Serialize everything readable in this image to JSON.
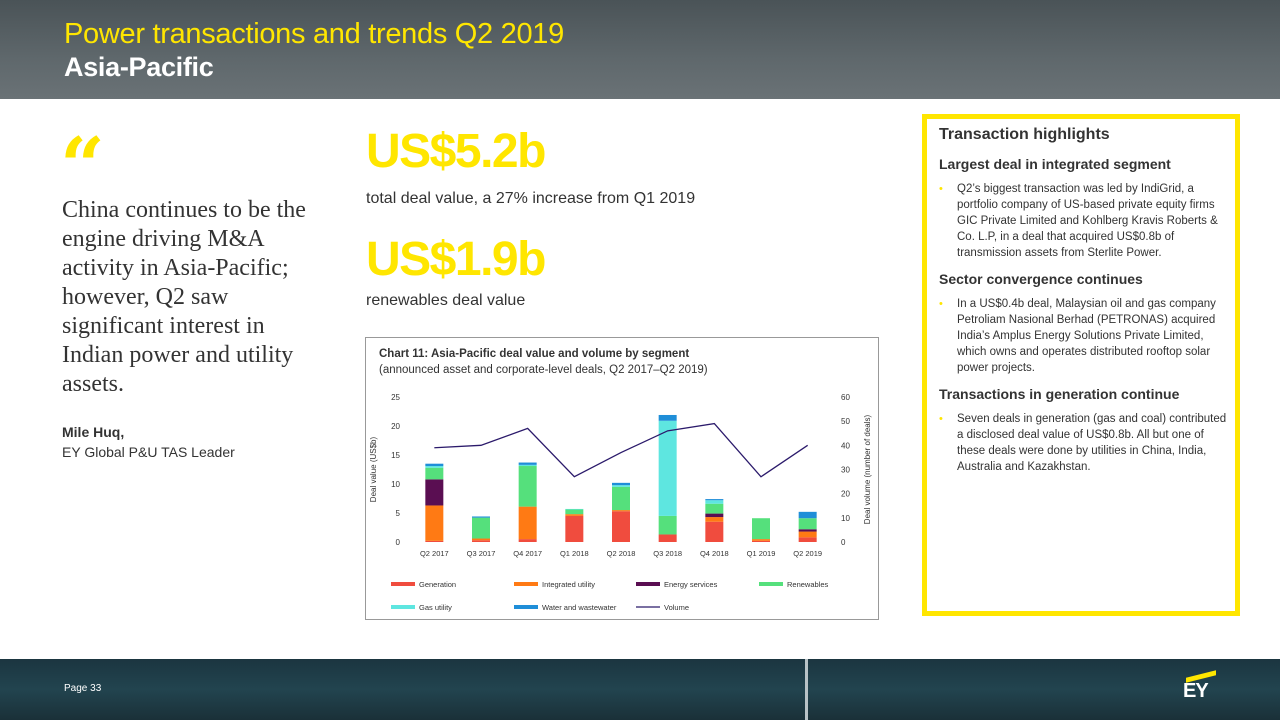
{
  "header": {
    "title": "Power transactions and trends Q2 2019",
    "subtitle": "Asia-Pacific"
  },
  "quote": {
    "mark": "“",
    "text": "China continues to be the engine driving M&A activity in Asia-Pacific; however, Q2 saw significant interest in Indian power and utility assets.",
    "author": "Mile Huq,",
    "role": "EY Global P&U TAS Leader"
  },
  "stats": [
    {
      "value": "US$5.2b",
      "desc": "total deal value, a 27% increase from Q1 2019"
    },
    {
      "value": "US$1.9b",
      "desc": "renewables deal value"
    }
  ],
  "highlights": {
    "title": "Transaction highlights",
    "sections": [
      {
        "heading": "Largest deal in integrated segment",
        "bullet": "Q2’s biggest transaction was led by IndiGrid, a portfolio company of US-based private equity firms GIC Private Limited and Kohlberg Kravis Roberts & Co. L.P, in a deal that acquired US$0.8b of transmission assets from Sterlite Power."
      },
      {
        "heading": "Sector convergence continues",
        "bullet": "In a US$0.4b deal, Malaysian oil and gas company Petroliam Nasional Berhad (PETRONAS) acquired India’s Amplus Energy Solutions Private Limited, which owns and operates distributed rooftop solar power projects."
      },
      {
        "heading": "Transactions in generation continue",
        "bullet": "Seven deals in generation (gas and coal) contributed a disclosed deal value of US$0.8b. All but one of these deals were done by utilities in China, India, Australia and Kazakhstan."
      }
    ]
  },
  "footer": {
    "page": "Page 33",
    "logo": "EY"
  },
  "chart_data": {
    "type": "bar",
    "stacked": true,
    "title": "Chart 11: Asia-Pacific deal value and volume by segment",
    "subtitle": "(announced asset and corporate-level deals, Q2 2017–Q2 2019)",
    "ylabel": "Deal value (US$b)",
    "y2label": "Deal volume (number of deals)",
    "ylim": [
      0,
      25
    ],
    "y2lim": [
      0,
      60
    ],
    "yticks": [
      "0",
      "5",
      "10",
      "15",
      "20",
      "25"
    ],
    "y2ticks": [
      "0",
      "10",
      "20",
      "30",
      "40",
      "50",
      "60"
    ],
    "categories": [
      "Q2 2017",
      "Q3 2017",
      "Q4 2017",
      "Q1 2018",
      "Q2 2018",
      "Q3 2018",
      "Q4 2018",
      "Q1 2019",
      "Q2 2019"
    ],
    "series": [
      {
        "name": "Generation",
        "color": "#f04c3e",
        "values": [
          0.2,
          0.3,
          0.5,
          4.5,
          5.3,
          1.3,
          3.5,
          0.2,
          0.8
        ]
      },
      {
        "name": "Integrated utility",
        "color": "#ff7a14",
        "values": [
          6.1,
          0.3,
          5.6,
          0.3,
          0.2,
          0.0,
          0.8,
          0.3,
          1.0
        ]
      },
      {
        "name": "Energy services",
        "color": "#5a0e52",
        "values": [
          4.5,
          0.0,
          0.0,
          0.0,
          0.0,
          0.0,
          0.6,
          0.0,
          0.4
        ]
      },
      {
        "name": "Renewables",
        "color": "#55e07c",
        "values": [
          2.0,
          3.6,
          7.0,
          0.8,
          4.0,
          3.2,
          1.7,
          3.6,
          1.9
        ]
      },
      {
        "name": "Gas utility",
        "color": "#5ee6e0",
        "values": [
          0.3,
          0.0,
          0.2,
          0.1,
          0.3,
          16.4,
          0.6,
          0.0,
          0.0
        ]
      },
      {
        "name": "Water and wastewater",
        "color": "#1f8ed8",
        "values": [
          0.4,
          0.2,
          0.4,
          0.0,
          0.4,
          1.0,
          0.2,
          0.0,
          1.1
        ]
      }
    ],
    "line": {
      "name": "Volume",
      "color": "#2b1a6b",
      "values": [
        39,
        40,
        47,
        27,
        37,
        46,
        49,
        27,
        40
      ]
    },
    "legend": "bottom",
    "grid": false
  }
}
